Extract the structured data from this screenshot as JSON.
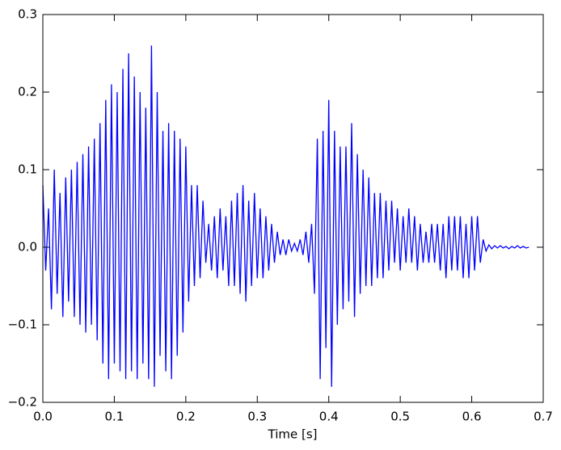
{
  "chart_data": {
    "type": "line",
    "xlabel": "Time [s]",
    "color": "#0000ff",
    "xlim": [
      0,
      0.7
    ],
    "ylim": [
      -0.2,
      0.3
    ],
    "xticks": [
      {
        "value": 0,
        "label": "0.0"
      },
      0.1,
      0.2,
      0.3,
      0.4,
      0.5,
      0.6,
      0.7
    ],
    "yticks": [
      {
        "value": -0.2,
        "label": "−0.2"
      },
      {
        "value": -0.1,
        "label": "−0.1"
      },
      {
        "value": 0,
        "label": "0.0"
      },
      0.1,
      0.2,
      0.3
    ],
    "x": [
      0,
      0.004,
      0.008,
      0.012,
      0.016,
      0.02,
      0.024,
      0.028,
      0.032,
      0.036,
      0.04,
      0.044,
      0.048,
      0.052,
      0.056,
      0.06,
      0.064,
      0.068,
      0.072,
      0.076,
      0.08,
      0.084,
      0.088,
      0.092,
      0.096,
      0.1,
      0.104,
      0.108,
      0.112,
      0.116,
      0.12,
      0.124,
      0.128,
      0.132,
      0.136,
      0.14,
      0.144,
      0.148,
      0.152,
      0.156,
      0.16,
      0.164,
      0.168,
      0.172,
      0.176,
      0.18,
      0.184,
      0.188,
      0.192,
      0.196,
      0.2,
      0.204,
      0.208,
      0.212,
      0.216,
      0.22,
      0.224,
      0.228,
      0.232,
      0.236,
      0.24,
      0.244,
      0.248,
      0.252,
      0.256,
      0.26,
      0.264,
      0.268,
      0.272,
      0.276,
      0.28,
      0.284,
      0.288,
      0.292,
      0.296,
      0.3,
      0.304,
      0.308,
      0.312,
      0.316,
      0.32,
      0.324,
      0.328,
      0.332,
      0.336,
      0.34,
      0.344,
      0.348,
      0.352,
      0.356,
      0.36,
      0.364,
      0.368,
      0.372,
      0.376,
      0.38,
      0.384,
      0.388,
      0.392,
      0.396,
      0.4,
      0.404,
      0.408,
      0.412,
      0.416,
      0.42,
      0.424,
      0.428,
      0.432,
      0.436,
      0.44,
      0.444,
      0.448,
      0.452,
      0.456,
      0.46,
      0.464,
      0.468,
      0.472,
      0.476,
      0.48,
      0.484,
      0.488,
      0.492,
      0.496,
      0.5,
      0.504,
      0.508,
      0.512,
      0.516,
      0.52,
      0.524,
      0.528,
      0.532,
      0.536,
      0.54,
      0.544,
      0.548,
      0.552,
      0.556,
      0.56,
      0.564,
      0.568,
      0.572,
      0.576,
      0.58,
      0.584,
      0.588,
      0.592,
      0.596,
      0.6,
      0.604,
      0.608,
      0.612,
      0.616,
      0.62,
      0.624,
      0.628,
      0.632,
      0.636,
      0.64,
      0.644,
      0.648,
      0.652,
      0.656,
      0.66,
      0.664,
      0.668,
      0.672,
      0.676,
      0.68
    ],
    "values": [
      0.08,
      -0.03,
      0.05,
      -0.08,
      0.1,
      -0.06,
      0.07,
      -0.09,
      0.09,
      -0.07,
      0.1,
      -0.09,
      0.11,
      -0.1,
      0.12,
      -0.11,
      0.13,
      -0.1,
      0.14,
      -0.12,
      0.16,
      -0.15,
      0.19,
      -0.17,
      0.21,
      -0.15,
      0.2,
      -0.16,
      0.23,
      -0.17,
      0.25,
      -0.16,
      0.22,
      -0.17,
      0.2,
      -0.15,
      0.18,
      -0.17,
      0.26,
      -0.18,
      0.2,
      -0.14,
      0.15,
      -0.16,
      0.16,
      -0.17,
      0.15,
      -0.14,
      0.14,
      -0.11,
      0.13,
      -0.07,
      0.08,
      -0.05,
      0.08,
      -0.04,
      0.06,
      -0.02,
      0.03,
      -0.03,
      0.04,
      -0.04,
      0.05,
      -0.03,
      0.04,
      -0.05,
      0.06,
      -0.05,
      0.07,
      -0.06,
      0.08,
      -0.07,
      0.06,
      -0.05,
      0.07,
      -0.04,
      0.05,
      -0.04,
      0.04,
      -0.03,
      0.03,
      -0.02,
      0.02,
      -0.01,
      0.01,
      -0.01,
      0.01,
      -0.005,
      0.005,
      -0.005,
      0.01,
      -0.01,
      0.02,
      -0.02,
      0.03,
      -0.06,
      0.14,
      -0.17,
      0.15,
      -0.13,
      0.19,
      -0.18,
      0.15,
      -0.1,
      0.13,
      -0.08,
      0.13,
      -0.07,
      0.16,
      -0.09,
      0.12,
      -0.06,
      0.1,
      -0.05,
      0.09,
      -0.05,
      0.07,
      -0.04,
      0.07,
      -0.04,
      0.06,
      -0.03,
      0.06,
      -0.02,
      0.05,
      -0.03,
      0.04,
      -0.02,
      0.05,
      -0.02,
      0.04,
      -0.03,
      0.03,
      -0.02,
      0.02,
      -0.02,
      0.03,
      -0.02,
      0.03,
      -0.03,
      0.03,
      -0.04,
      0.04,
      -0.03,
      0.04,
      -0.03,
      0.04,
      -0.04,
      0.03,
      -0.04,
      0.04,
      -0.03,
      0.04,
      -0.02,
      0.01,
      -0.005,
      0.003,
      -0.002,
      0.002,
      -0.001,
      0.002,
      -0.001,
      0.001,
      -0.002,
      0.001,
      -0.001,
      0.002,
      -0.001,
      0.001,
      -0.001,
      0
    ]
  }
}
